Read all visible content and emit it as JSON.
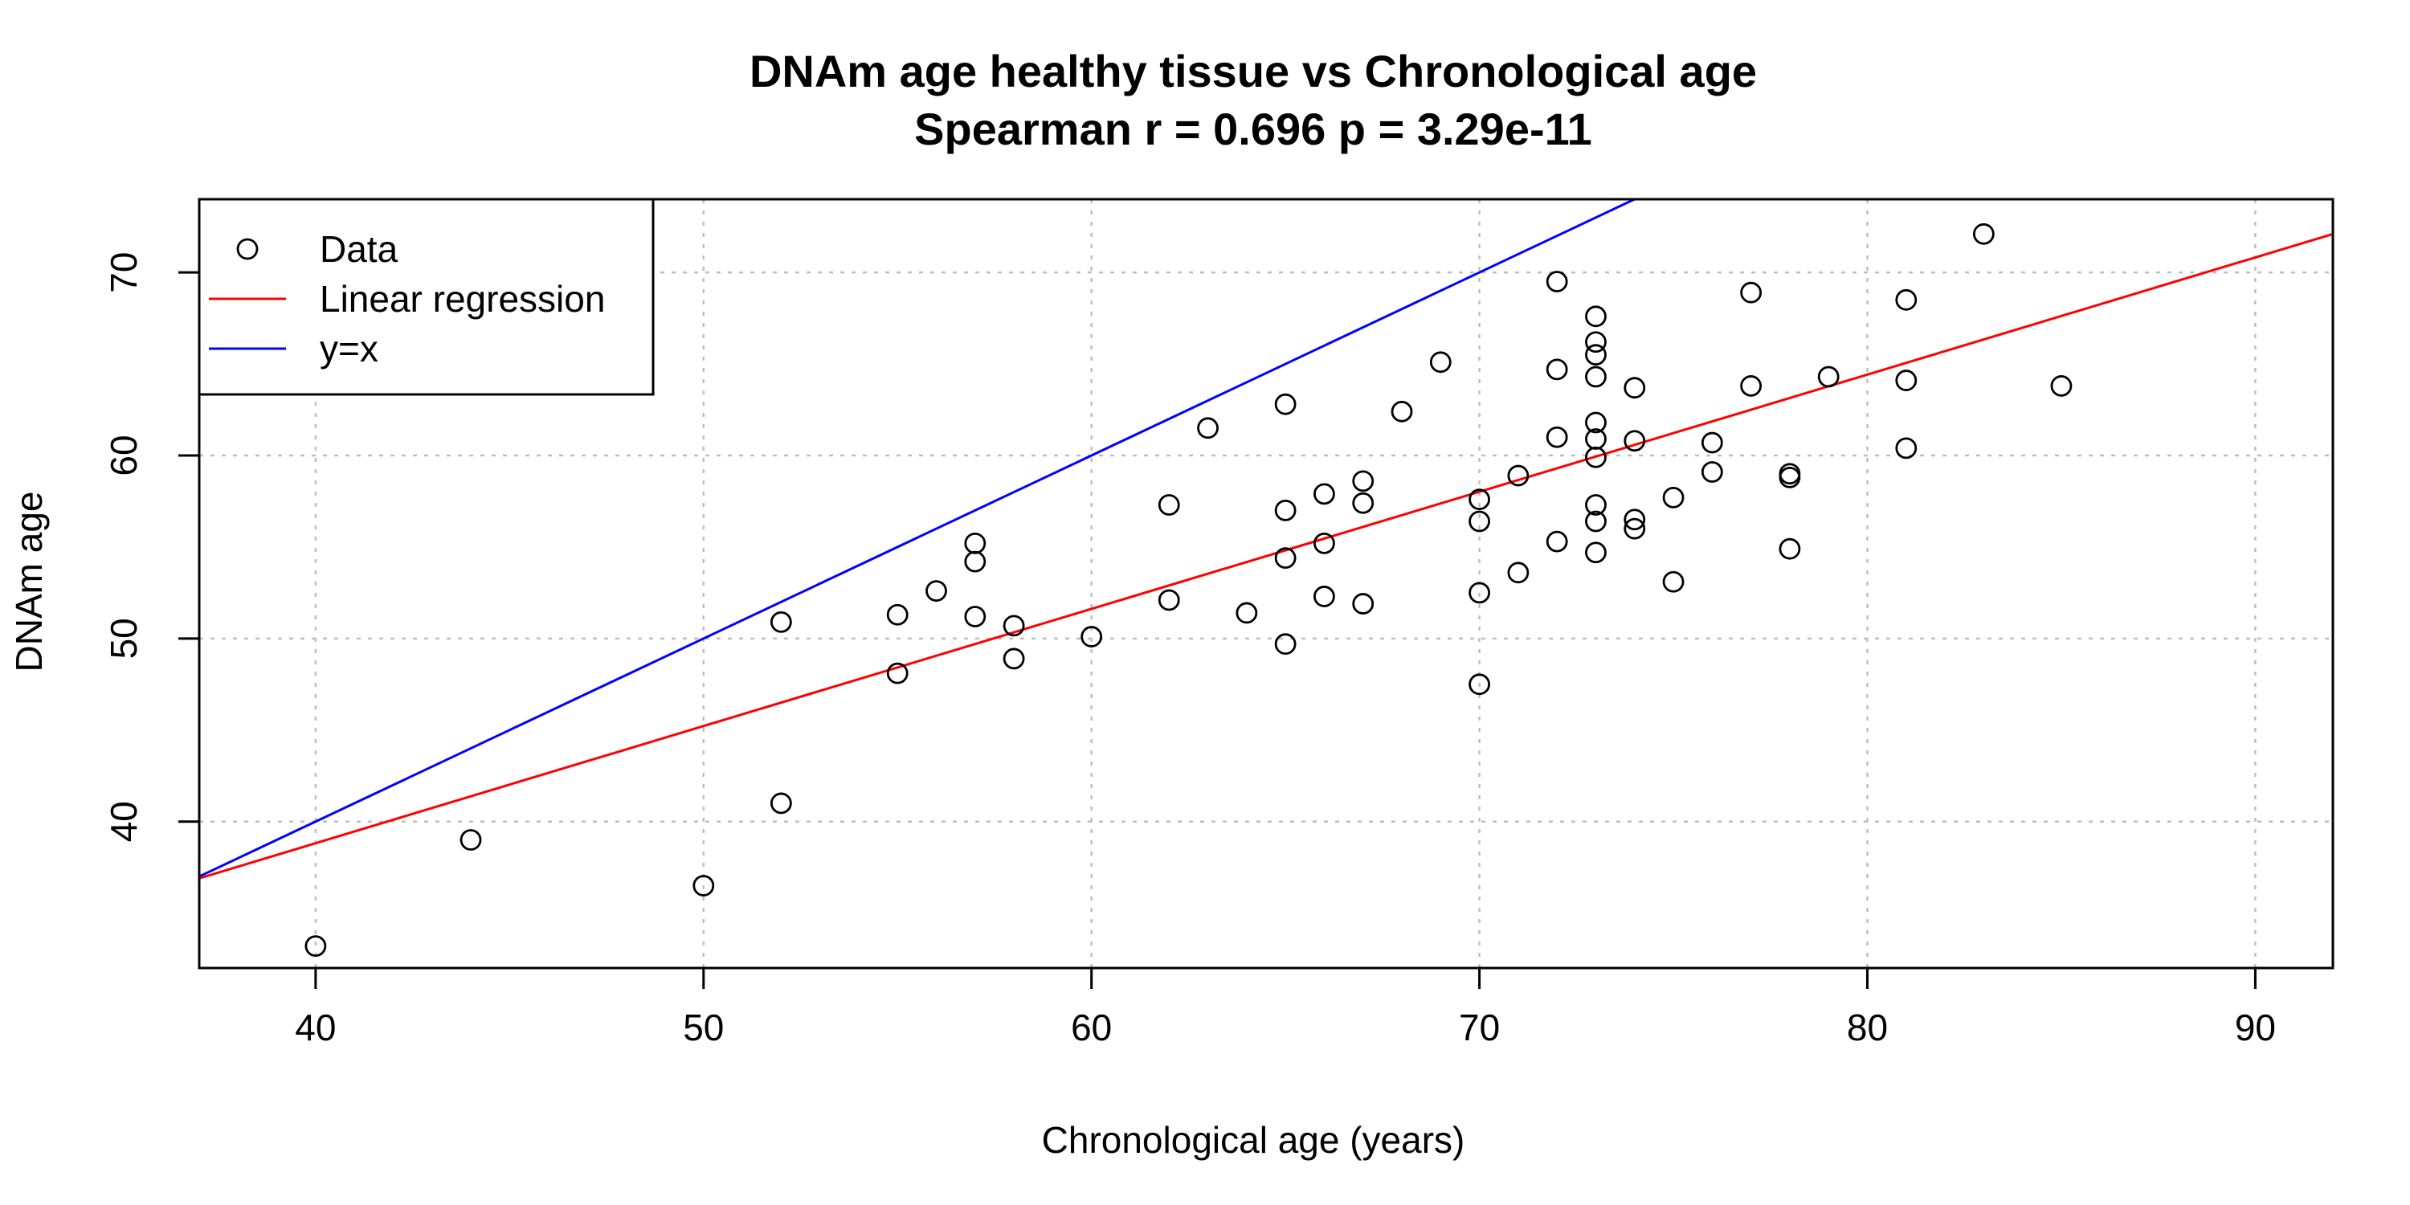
{
  "chart_data": {
    "type": "scatter",
    "title": "DNAm age healthy tissue vs Chronological age",
    "subtitle": "Spearman r = 0.696 p =  3.29e-11",
    "xlabel": "Chronological age (years)",
    "ylabel": "DNAm age",
    "xlim": [
      37,
      92
    ],
    "ylim": [
      32,
      74
    ],
    "xticks": [
      40,
      50,
      60,
      70,
      80,
      90
    ],
    "yticks": [
      40,
      50,
      60,
      70
    ],
    "grid": true,
    "legend_position": "top-left",
    "legend": [
      {
        "label": "Data",
        "kind": "point",
        "color": "#000000"
      },
      {
        "label": "Linear regression",
        "kind": "line",
        "color": "#ff0000"
      },
      {
        "label": "y=x",
        "kind": "line",
        "color": "#0000ff"
      }
    ],
    "points": [
      {
        "x": 40,
        "y": 33.2
      },
      {
        "x": 44,
        "y": 39.0
      },
      {
        "x": 50,
        "y": 36.5
      },
      {
        "x": 52,
        "y": 41.0
      },
      {
        "x": 52,
        "y": 50.9
      },
      {
        "x": 55,
        "y": 51.3
      },
      {
        "x": 55,
        "y": 48.1
      },
      {
        "x": 56,
        "y": 52.6
      },
      {
        "x": 57,
        "y": 55.2
      },
      {
        "x": 57,
        "y": 54.2
      },
      {
        "x": 57,
        "y": 51.2
      },
      {
        "x": 58,
        "y": 50.7
      },
      {
        "x": 58,
        "y": 48.9
      },
      {
        "x": 60,
        "y": 50.1
      },
      {
        "x": 62,
        "y": 57.3
      },
      {
        "x": 62,
        "y": 52.1
      },
      {
        "x": 63,
        "y": 61.5
      },
      {
        "x": 64,
        "y": 51.4
      },
      {
        "x": 65,
        "y": 62.8
      },
      {
        "x": 65,
        "y": 57.0
      },
      {
        "x": 65,
        "y": 54.4
      },
      {
        "x": 65,
        "y": 49.7
      },
      {
        "x": 66,
        "y": 57.9
      },
      {
        "x": 66,
        "y": 55.2
      },
      {
        "x": 66,
        "y": 52.3
      },
      {
        "x": 67,
        "y": 58.6
      },
      {
        "x": 67,
        "y": 57.4
      },
      {
        "x": 67,
        "y": 51.9
      },
      {
        "x": 68,
        "y": 62.4
      },
      {
        "x": 69,
        "y": 65.1
      },
      {
        "x": 70,
        "y": 57.6
      },
      {
        "x": 70,
        "y": 56.4
      },
      {
        "x": 70,
        "y": 52.5
      },
      {
        "x": 70,
        "y": 47.5
      },
      {
        "x": 71,
        "y": 58.9
      },
      {
        "x": 71,
        "y": 53.6
      },
      {
        "x": 72,
        "y": 69.5
      },
      {
        "x": 72,
        "y": 64.7
      },
      {
        "x": 72,
        "y": 61.0
      },
      {
        "x": 72,
        "y": 55.3
      },
      {
        "x": 73,
        "y": 67.6
      },
      {
        "x": 73,
        "y": 66.2
      },
      {
        "x": 73,
        "y": 65.5
      },
      {
        "x": 73,
        "y": 64.3
      },
      {
        "x": 73,
        "y": 61.8
      },
      {
        "x": 73,
        "y": 60.9
      },
      {
        "x": 73,
        "y": 59.9
      },
      {
        "x": 73,
        "y": 57.3
      },
      {
        "x": 73,
        "y": 56.4
      },
      {
        "x": 73,
        "y": 54.7
      },
      {
        "x": 74,
        "y": 63.7
      },
      {
        "x": 74,
        "y": 60.8
      },
      {
        "x": 74,
        "y": 56.5
      },
      {
        "x": 74,
        "y": 56.0
      },
      {
        "x": 75,
        "y": 57.7
      },
      {
        "x": 75,
        "y": 53.1
      },
      {
        "x": 76,
        "y": 60.7
      },
      {
        "x": 76,
        "y": 59.1
      },
      {
        "x": 77,
        "y": 68.9
      },
      {
        "x": 77,
        "y": 63.8
      },
      {
        "x": 78,
        "y": 59.0
      },
      {
        "x": 78,
        "y": 58.8
      },
      {
        "x": 78,
        "y": 54.9
      },
      {
        "x": 79,
        "y": 64.3
      },
      {
        "x": 81,
        "y": 68.5
      },
      {
        "x": 81,
        "y": 64.1
      },
      {
        "x": 81,
        "y": 60.4
      },
      {
        "x": 83,
        "y": 72.1
      },
      {
        "x": 85,
        "y": 63.8
      }
    ],
    "regression_line": {
      "x": [
        37,
        92
      ],
      "y": [
        36.9,
        72.1
      ]
    },
    "identity_line": {
      "x": [
        37,
        74
      ],
      "y": [
        37,
        74
      ]
    },
    "colors": {
      "points": "#000000",
      "regression": "#ff0000",
      "identity": "#0000ff",
      "grid": "#bebebe"
    }
  }
}
